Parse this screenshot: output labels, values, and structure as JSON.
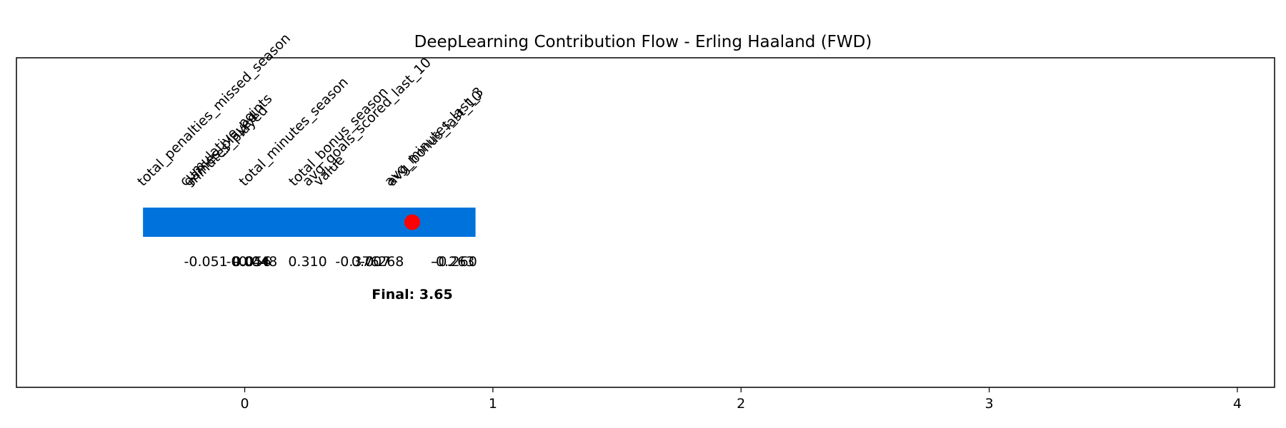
{
  "chart_data": {
    "type": "waterfall",
    "title": "DeepLearning Contribution Flow - Erling Haaland (FWD)",
    "xlabel": "",
    "ylabel": "",
    "xlim": [
      -0.92,
      4.15
    ],
    "xticks": [
      0,
      1,
      2,
      3,
      4
    ],
    "bar_range": [
      -0.41,
      0.93
    ],
    "final_value": 3.65,
    "final_label": "Final: 3.65",
    "marker_x": 0.675,
    "bar_color": "#0072DB",
    "marker_color": "#FF0000",
    "grid": false,
    "features": [
      {
        "name": "total_penalties_missed_season",
        "x": -0.41,
        "value_label": "-0.051"
      },
      {
        "name": "cumulative_points",
        "x": -0.24,
        "value_label": "-0.044"
      },
      {
        "name": "games_played",
        "x": -0.225,
        "value_label": "0.056"
      },
      {
        "name": "minutes_played",
        "x": -0.21,
        "value_label": "-0.048"
      },
      {
        "name": "total_minutes_season",
        "x": 0.0,
        "value_label": "0.310"
      },
      {
        "name": "total_bonus_season",
        "x": 0.2,
        "value_label": "-0.376"
      },
      {
        "name": "avg_goals_scored_last_10",
        "x": 0.255,
        "value_label": "0.707"
      },
      {
        "name": "value",
        "x": 0.3,
        "value_label": "-0.268"
      },
      {
        "name": "avg_minutes_last_3",
        "x": 0.585,
        "value_label": "-0.263"
      },
      {
        "name": "avg_bonus_last_10",
        "x": 0.595,
        "value_label": "-0.260"
      }
    ]
  }
}
